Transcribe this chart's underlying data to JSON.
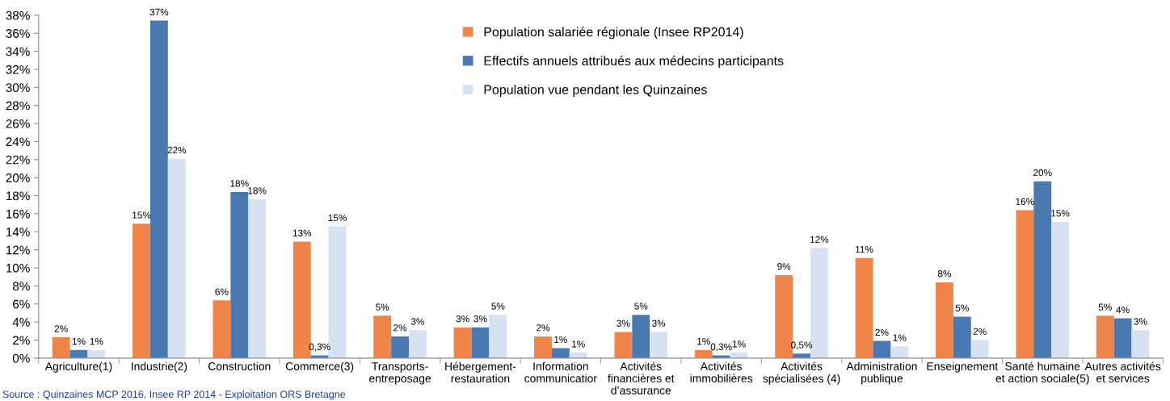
{
  "chart_data": {
    "type": "bar",
    "categories": [
      "Agriculture(1)",
      "Industrie(2)",
      "Construction",
      "Commerce(3)",
      "Transports-\nentreposage",
      "Hébergement-\nrestauration",
      "Information\ncommunicatior",
      "Activités\nfinancières et\nd’assurance",
      "Activités\nimmobilières",
      "Activités\nspécialisées (4)",
      "Administration\npublique",
      "Enseignement",
      "Santé humaine\net action sociale(5)",
      "Autres activités\net services"
    ],
    "series": [
      {
        "name": "Population salariée régionale (Insee RP2014)",
        "color": "#f0854a",
        "values": [
          2.3,
          14.9,
          6.4,
          12.9,
          4.7,
          3.4,
          2.4,
          2.9,
          0.9,
          9.2,
          11.1,
          8.4,
          16.4,
          4.7
        ],
        "value_labels": [
          "2%",
          "15%",
          "6%",
          "13%",
          "5%",
          "3%",
          "2%",
          "3%",
          "1%",
          "9%",
          "11%",
          "8%",
          "16%",
          "5%"
        ]
      },
      {
        "name": "Effectifs annuels attribués aux médecins participants",
        "color": "#4a78b0",
        "values": [
          0.9,
          37.4,
          18.4,
          0.3,
          2.4,
          3.4,
          1.1,
          4.8,
          0.3,
          0.5,
          1.9,
          4.6,
          19.6,
          4.4
        ],
        "value_labels": [
          "1%",
          "37%",
          "18%",
          "0,3%",
          "2%",
          "3%",
          "1%",
          "5%",
          "0,3%",
          "0,5%",
          "2%",
          "5%",
          "20%",
          "4%"
        ]
      },
      {
        "name": "Population vue pendant les Quinzaines",
        "color": "#d6e2f2",
        "values": [
          0.9,
          22.1,
          17.6,
          14.6,
          3.1,
          4.8,
          0.6,
          2.9,
          0.6,
          12.2,
          1.3,
          2.0,
          15.1,
          3.1
        ],
        "value_labels": [
          "1%",
          "22%",
          "18%",
          "15%",
          "3%",
          "5%",
          "1%",
          "3%",
          "1%",
          "12%",
          "1%",
          "2%",
          "15%",
          "3%"
        ]
      }
    ],
    "ylim": [
      0,
      38
    ],
    "yticks": [
      {
        "value": 0,
        "label": "0%"
      },
      {
        "value": 2,
        "label": "2%"
      },
      {
        "value": 4,
        "label": "4%"
      },
      {
        "value": 6,
        "label": "6%"
      },
      {
        "value": 8,
        "label": "8%"
      },
      {
        "value": 10,
        "label": "10%"
      },
      {
        "value": 12,
        "label": "12%"
      },
      {
        "value": 14,
        "label": "14%"
      },
      {
        "value": 16,
        "label": "16%"
      },
      {
        "value": 18,
        "label": "18%"
      },
      {
        "value": 20,
        "label": "20%"
      },
      {
        "value": 22,
        "label": "22%"
      },
      {
        "value": 24,
        "label": "24%"
      },
      {
        "value": 26,
        "label": "26%"
      },
      {
        "value": 28,
        "label": "28%"
      },
      {
        "value": 30,
        "label": "30%"
      },
      {
        "value": 32,
        "label": "32%"
      },
      {
        "value": 34,
        "label": "34%"
      },
      {
        "value": 36,
        "label": "36%"
      },
      {
        "value": 38,
        "label": "38%"
      }
    ],
    "grid": false,
    "legend": "top",
    "annotations": [
      "Source : Quinzaines MCP 2016, Insee RP 2014 - Exploitation ORS Bretagne"
    ]
  }
}
